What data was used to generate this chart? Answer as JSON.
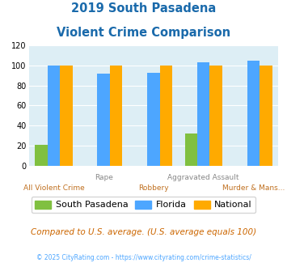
{
  "title_line1": "2019 South Pasadena",
  "title_line2": "Violent Crime Comparison",
  "south_pasadena": [
    21,
    0,
    0,
    32,
    0
  ],
  "florida": [
    100,
    92,
    93,
    103,
    105
  ],
  "national": [
    100,
    100,
    100,
    100,
    100
  ],
  "sp_color": "#80c040",
  "fl_color": "#4da6ff",
  "nat_color": "#ffaa00",
  "ylim": [
    0,
    120
  ],
  "yticks": [
    0,
    20,
    40,
    60,
    80,
    100,
    120
  ],
  "title_color": "#1a6aab",
  "bg_color": "#ddeef5",
  "top_labels": [
    "",
    "Rape",
    "",
    "Aggravated Assault",
    ""
  ],
  "bot_labels": [
    "All Violent Crime",
    "",
    "Robbery",
    "",
    "Murder & Mans..."
  ],
  "top_label_color": "#888888",
  "bot_label_color": "#c07020",
  "footnote": "Compared to U.S. average. (U.S. average equals 100)",
  "copyright": "© 2025 CityRating.com - https://www.cityrating.com/crime-statistics/",
  "copyright_color": "#4da6ff",
  "footnote_color": "#cc6600",
  "legend_labels": [
    "South Pasadena",
    "Florida",
    "National"
  ],
  "bar_width": 0.25
}
